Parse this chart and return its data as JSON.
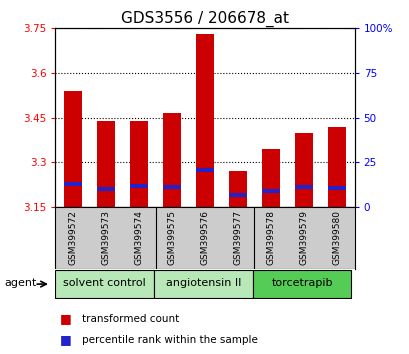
{
  "title": "GDS3556 / 206678_at",
  "samples": [
    "GSM399572",
    "GSM399573",
    "GSM399574",
    "GSM399575",
    "GSM399576",
    "GSM399577",
    "GSM399578",
    "GSM399579",
    "GSM399580"
  ],
  "transformed_counts": [
    3.54,
    3.44,
    3.44,
    3.465,
    3.73,
    3.27,
    3.345,
    3.4,
    3.42
  ],
  "blue_positions": [
    3.222,
    3.205,
    3.213,
    3.212,
    3.268,
    3.185,
    3.197,
    3.212,
    3.207
  ],
  "blue_heights": [
    0.013,
    0.013,
    0.013,
    0.013,
    0.013,
    0.013,
    0.013,
    0.013,
    0.013
  ],
  "ylim_left": [
    3.15,
    3.75
  ],
  "ylim_right": [
    0,
    100
  ],
  "yticks_left": [
    3.15,
    3.3,
    3.45,
    3.6,
    3.75
  ],
  "yticks_right": [
    0,
    25,
    50,
    75,
    100
  ],
  "ytick_labels_left": [
    "3.15",
    "3.3",
    "3.45",
    "3.6",
    "3.75"
  ],
  "ytick_labels_right": [
    "0",
    "25",
    "50",
    "75",
    "100%"
  ],
  "bar_bottom": 3.15,
  "bar_color": "#cc0000",
  "blue_color": "#2222cc",
  "group_colors": [
    "#b8e8b8",
    "#b8e8b8",
    "#55cc55"
  ],
  "group_labels": [
    "solvent control",
    "angiotensin II",
    "torcetrapib"
  ],
  "group_ranges": [
    [
      0,
      2
    ],
    [
      3,
      5
    ],
    [
      6,
      8
    ]
  ],
  "agent_label": "agent",
  "legend_items": [
    {
      "label": "transformed count",
      "color": "#cc0000"
    },
    {
      "label": "percentile rank within the sample",
      "color": "#2222cc"
    }
  ],
  "background_color": "#ffffff",
  "label_bg_color": "#cccccc",
  "title_fontsize": 11,
  "tick_fontsize": 7.5,
  "sample_fontsize": 6.5,
  "agent_fontsize": 8,
  "legend_fontsize": 7.5
}
